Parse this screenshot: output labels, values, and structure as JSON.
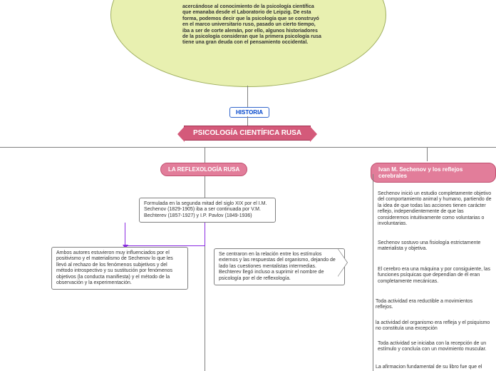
{
  "circle_text": "acercándose al conocimiento de la psicología científica que emanaba desde el Laboratorio de Leipzig. De esta forma, podemos decir que la psicología que se construyó en el marco universitario ruso, pasado un cierto tiempo, iba a ser de corte alemán, por ello, algunos historiadores de la psicología consideran que la primera psicología rusa tiene una gran deuda con el pensamiento occidental.",
  "historia": "HISTORIA",
  "main_title": "PSICOLOGÍA CIENTÍFICA RUSA",
  "sub_left": "LA REFLEXOLOGÍA RUSA",
  "sub_right": "Ivan M. Sechenov y los reflejos cerebrales",
  "box_formulada": "Formulada en la segunda mitad del siglo XIX por el I.M. Sechenov (1829-1905) iba a ser continuada por V.M. Bechterev (1857-1927) y I.P. Pavlov (1849-1936)",
  "box_ambos": "Ambos autores estuvieron muy influenciados por el positivismo y el materialismo de Sechenov lo que les llevó al rechazo de los fenómenos subjetivos y del método introspectivo y su sustitución por fenómenos objetivos (la conducta manifiesta) y el método de la observación y la experimentación.",
  "box_centraron": "Se centraron en la relación entre los estímulos externos y las respuestas del organismo, dejando de lado las cuestiones mentalistas intermedias. Bechterev llegó incluso a suprimir el nombre de psicología por el de reflexología.",
  "pt_1": "Sechenov inició un estudio completamente objetivo del comportamiento animal y humano, partiendo de la idea de que todas las acciones tienen carácter reflejo, independientemente de que las consideremos intuitivamente como voluntarias o involuntarias.",
  "pt_2": "Sechenov sostuvo una fisiología estrictamente materialista y objetiva.",
  "pt_3": "El cerebro era una máquina y por consiguiente, las funciones psíquicas que dependían de él eran completamente mecánicas.",
  "pt_4": "Toda actividad era reductible a movimientos reflejos.",
  "pt_5": "la actividad del organismo era refleja y el psiquismo no constituía una excepción",
  "pt_6": "Toda actividad se iniciaba con la recepción de un estímulo y concluía con un movimiento muscular.",
  "pt_7": "La afirmacion fundamental de su libro fue que el",
  "colors": {
    "circle_bg": "#e8f0b0",
    "pink_main": "#d45a7a",
    "pink_sub": "#e27d9a",
    "link_blue": "#0044cc",
    "connector": "#8a2be2",
    "border_gray": "#808080"
  }
}
